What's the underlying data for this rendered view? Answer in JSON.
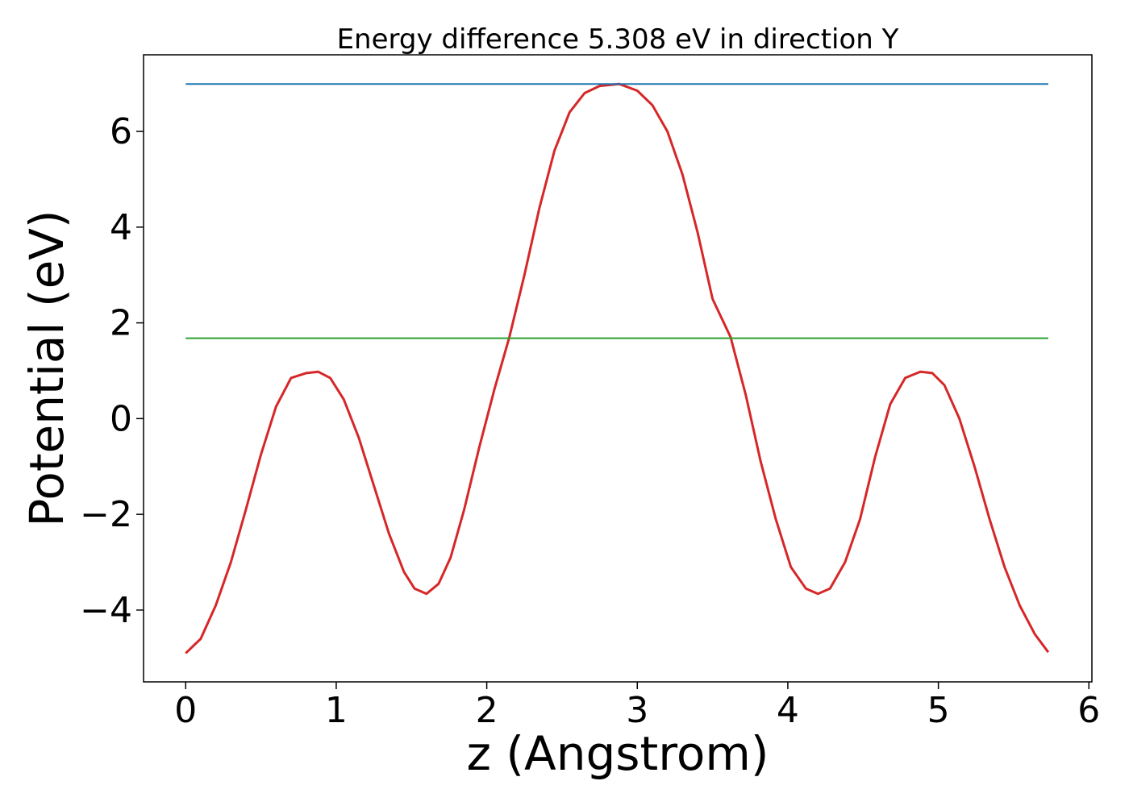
{
  "chart_data": {
    "type": "line",
    "title": "Energy difference 5.308 eV in direction Y",
    "xlabel": "z (Angstrom)",
    "ylabel": "Potential (eV)",
    "xlim": [
      -0.28,
      6.02
    ],
    "ylim": [
      -5.5,
      7.6
    ],
    "xticks": [
      0,
      1,
      2,
      3,
      4,
      5,
      6
    ],
    "xtick_labels": [
      "0",
      "1",
      "2",
      "3",
      "4",
      "5",
      "6"
    ],
    "yticks": [
      -4,
      -2,
      0,
      2,
      4,
      6
    ],
    "ytick_labels": [
      "−4",
      "−2",
      "0",
      "2",
      "4",
      "6"
    ],
    "grid": false,
    "series": [
      {
        "color": "#d62728",
        "x": [
          0.0,
          0.1,
          0.2,
          0.3,
          0.4,
          0.5,
          0.6,
          0.7,
          0.8,
          0.88,
          0.96,
          1.05,
          1.15,
          1.25,
          1.35,
          1.45,
          1.52,
          1.6,
          1.68,
          1.76,
          1.85,
          1.95,
          2.05,
          2.15,
          2.25,
          2.35,
          2.45,
          2.55,
          2.65,
          2.75,
          2.88,
          3.0,
          3.1,
          3.2,
          3.3,
          3.4,
          3.5,
          3.62,
          3.72,
          3.82,
          3.92,
          4.02,
          4.12,
          4.2,
          4.28,
          4.38,
          4.48,
          4.58,
          4.68,
          4.78,
          4.88,
          4.96,
          5.04,
          5.14,
          5.24,
          5.34,
          5.44,
          5.54,
          5.64,
          5.73
        ],
        "values": [
          -4.9,
          -4.6,
          -3.9,
          -3.0,
          -1.9,
          -0.75,
          0.25,
          0.85,
          0.95,
          0.98,
          0.85,
          0.4,
          -0.4,
          -1.4,
          -2.4,
          -3.2,
          -3.55,
          -3.66,
          -3.45,
          -2.9,
          -1.9,
          -0.6,
          0.6,
          1.7,
          3.0,
          4.4,
          5.6,
          6.4,
          6.8,
          6.95,
          6.99,
          6.85,
          6.55,
          6.0,
          5.1,
          3.9,
          2.5,
          1.7,
          0.5,
          -0.9,
          -2.1,
          -3.1,
          -3.55,
          -3.66,
          -3.55,
          -3.0,
          -2.1,
          -0.8,
          0.3,
          0.85,
          0.98,
          0.95,
          0.7,
          0.0,
          -1.0,
          -2.1,
          -3.1,
          -3.9,
          -4.5,
          -4.88
        ]
      },
      {
        "color": "#1f77b4",
        "x": [
          0.0,
          5.73
        ],
        "values": [
          6.99,
          6.99
        ]
      },
      {
        "color": "#2ca02c",
        "x": [
          0.0,
          5.73
        ],
        "values": [
          1.68,
          1.68
        ]
      }
    ]
  }
}
